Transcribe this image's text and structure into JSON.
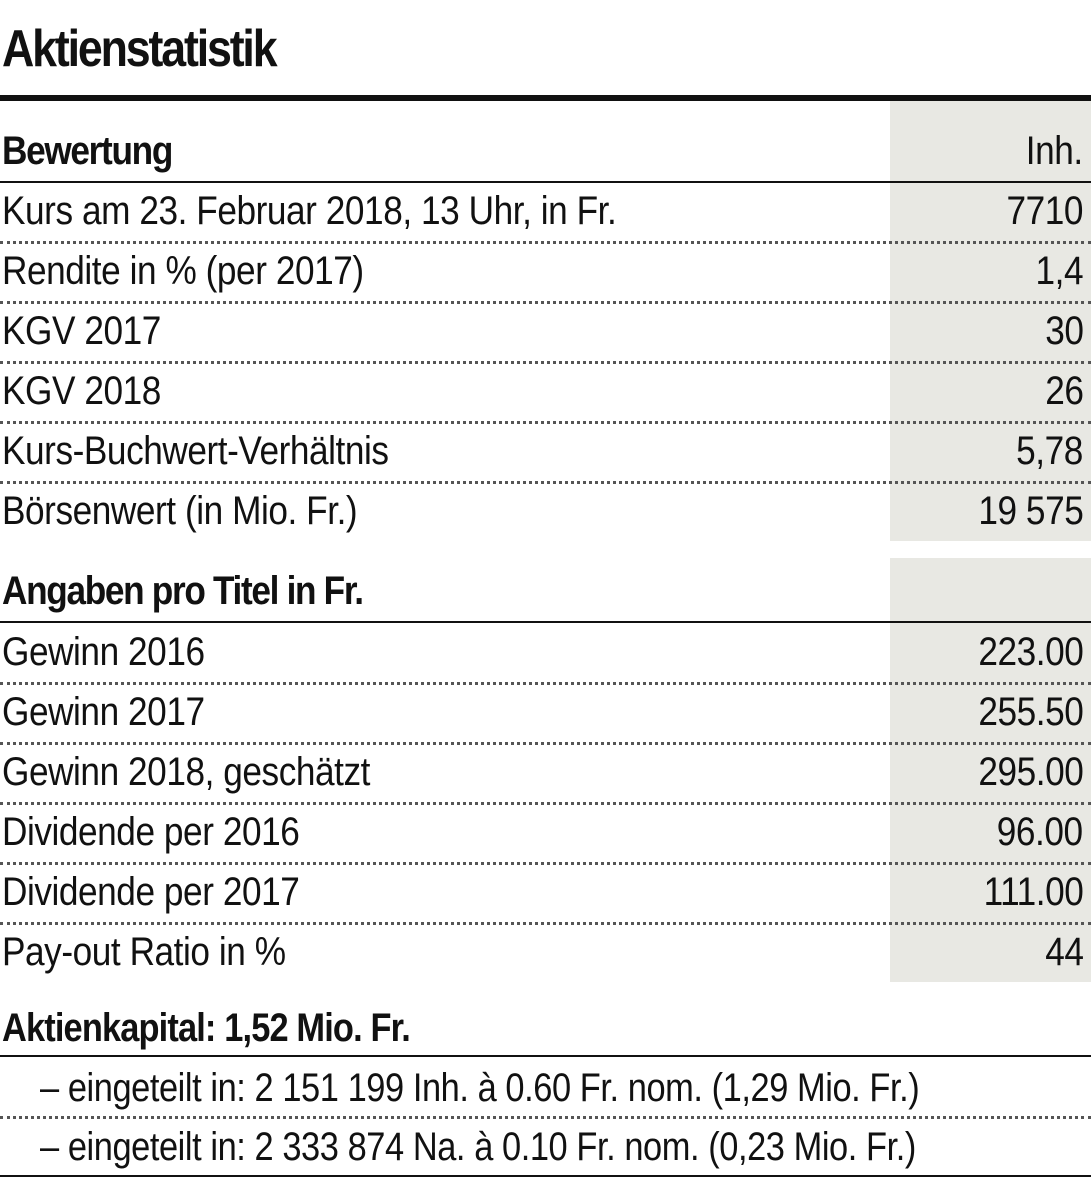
{
  "title": "Aktienstatistik",
  "bewertung": {
    "heading": "Bewertung",
    "column": "Inh.",
    "rows": [
      {
        "label": "Kurs am 23. Februar 2018, 13 Uhr, in Fr.",
        "value": "7710"
      },
      {
        "label": "Rendite in % (per 2017)",
        "value": "1,4"
      },
      {
        "label": "KGV 2017",
        "value": "30"
      },
      {
        "label": "KGV 2018",
        "value": "26"
      },
      {
        "label": "Kurs-Buchwert-Verhältnis",
        "value": "5,78"
      },
      {
        "label": "Börsenwert (in Mio. Fr.)",
        "value": "19 575"
      }
    ]
  },
  "angaben": {
    "heading": "Angaben pro Titel in Fr.",
    "rows": [
      {
        "label": "Gewinn 2016",
        "value": "223.00"
      },
      {
        "label": "Gewinn 2017",
        "value": "255.50"
      },
      {
        "label": "Gewinn 2018, geschätzt",
        "value": "295.00"
      },
      {
        "label": "Dividende per 2016",
        "value": "96.00"
      },
      {
        "label": "Dividende per 2017",
        "value": "111.00"
      },
      {
        "label": "Pay-out Ratio in %",
        "value": "44"
      }
    ]
  },
  "aktienkapital": {
    "heading": "Aktienkapital: 1,52 Mio. Fr.",
    "lines": [
      "– eingeteilt in: 2 151 199 Inh. à 0.60 Fr. nom. (1,29 Mio. Fr.)",
      "– eingeteilt in: 2 333 874 Na. à 0.10 Fr. nom. (0,23 Mio. Fr.)"
    ]
  }
}
